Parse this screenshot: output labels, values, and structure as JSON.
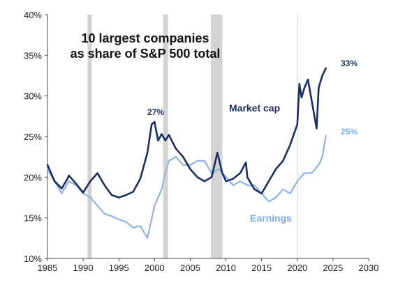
{
  "chart_data": {
    "type": "line",
    "title_lines": [
      "10 largest companies",
      "as share of S&P 500 total"
    ],
    "xlabel": "",
    "ylabel": "",
    "xlim": [
      1985,
      2030
    ],
    "ylim": [
      10,
      40
    ],
    "x_ticks": [
      "1985",
      "1990",
      "1995",
      "2000",
      "2005",
      "2010",
      "2015",
      "2020",
      "2025",
      "2030"
    ],
    "y_ticks": [
      "10%",
      "15%",
      "20%",
      "25%",
      "30%",
      "35%",
      "40%"
    ],
    "recessions": [
      [
        1990.6,
        1991.2
      ],
      [
        2001.2,
        2001.9
      ],
      [
        2007.9,
        2009.5
      ]
    ],
    "annotations": [
      {
        "text": "27%",
        "x": 2000.0,
        "y": 27
      },
      {
        "text": "33%",
        "x": 2024.0,
        "y": 33.4
      },
      {
        "text": "25%",
        "x": 2024.0,
        "y": 25.1
      }
    ],
    "series": [
      {
        "name": "Market cap",
        "color": "#1b2f5e",
        "x": [
          1985,
          1986,
          1987,
          1987.8,
          1988,
          1989,
          1990,
          1991,
          1992,
          1993,
          1994,
          1995,
          1996,
          1997,
          1998,
          1999,
          1999.6,
          2000.0,
          2000.5,
          2001,
          2001.5,
          2002,
          2003,
          2004,
          2005,
          2006,
          2007,
          2008,
          2008.8,
          2009.5,
          2010,
          2011,
          2012,
          2012.8,
          2013,
          2014,
          2015,
          2016,
          2017,
          2018,
          2019,
          2020,
          2020.3,
          2020.6,
          2021,
          2021.5,
          2022,
          2022.7,
          2023,
          2023.5,
          2024.0
        ],
        "values": [
          21.5,
          19.5,
          18.6,
          19.8,
          20.2,
          19.2,
          18.1,
          19.5,
          20.5,
          19.0,
          17.8,
          17.5,
          17.8,
          18.2,
          19.8,
          23.0,
          26.5,
          26.8,
          24.5,
          25.3,
          24.5,
          25.2,
          23.5,
          22.5,
          21.0,
          20.0,
          19.5,
          20.0,
          23.0,
          20.5,
          19.5,
          19.8,
          20.5,
          21.8,
          20.0,
          18.5,
          18.0,
          19.5,
          21.0,
          22.0,
          24.0,
          26.5,
          31.5,
          29.8,
          31.0,
          32.0,
          29.5,
          26.0,
          31.0,
          32.5,
          33.4
        ]
      },
      {
        "name": "Earnings",
        "color": "#8fb4df",
        "x": [
          1985,
          1986,
          1987,
          1988,
          1989,
          1990,
          1991,
          1992,
          1993,
          1994,
          1995,
          1996,
          1997,
          1998,
          1999,
          2000,
          2001,
          2001.5,
          2002,
          2003,
          2004,
          2005,
          2006,
          2007,
          2008,
          2009,
          2010,
          2011,
          2012,
          2013,
          2014,
          2015,
          2016,
          2017,
          2018,
          2019,
          2020,
          2021,
          2022,
          2023,
          2023.5,
          2024.0
        ],
        "values": [
          21.0,
          19.5,
          18.0,
          19.5,
          19.0,
          18.0,
          17.5,
          16.5,
          15.5,
          15.2,
          14.8,
          14.5,
          13.8,
          14.0,
          12.5,
          16.5,
          18.5,
          20.5,
          22.0,
          22.5,
          21.5,
          21.5,
          22.0,
          22.0,
          20.5,
          21.0,
          20.0,
          19.0,
          19.5,
          19.0,
          19.0,
          18.0,
          17.0,
          17.5,
          18.5,
          18.0,
          19.5,
          20.5,
          20.5,
          21.5,
          22.5,
          25.1
        ]
      }
    ]
  }
}
